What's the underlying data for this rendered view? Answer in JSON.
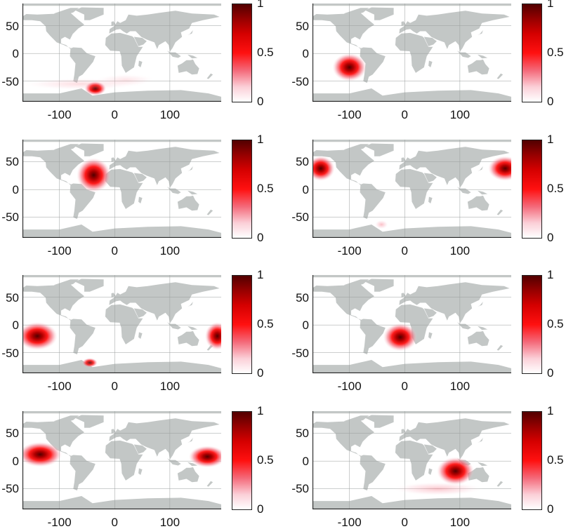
{
  "chart_data": {
    "type": "heatmap",
    "description_axes": {
      "xlim": [
        -167,
        193
      ],
      "ylim": [
        -87,
        90
      ]
    },
    "x_ticks": [
      "-100",
      "0",
      "100"
    ],
    "x_tick_values": [
      -100,
      0,
      100
    ],
    "y_ticks": [
      "50",
      "0",
      "-50"
    ],
    "y_tick_values": [
      50,
      0,
      -50
    ],
    "colorbar": {
      "ticks": [
        "1",
        "0.5",
        "0"
      ],
      "tick_values": [
        1,
        0.5,
        0
      ],
      "range": [
        0,
        1
      ]
    },
    "colors": {
      "land": "#c3c7c6",
      "low": "#ffffff",
      "mid": "#ff0000",
      "high": "#520000",
      "axis": "#222222"
    },
    "panels": [
      {
        "hotspots": [
          {
            "lon": -35,
            "lat": -63,
            "rlon": 14,
            "rlat": 9,
            "peak": 1.0
          },
          {
            "lon": -60,
            "lat": -55,
            "rlon": 80,
            "rlat": 8,
            "peak": 0.15
          },
          {
            "lon": 20,
            "lat": -48,
            "rlon": 40,
            "rlat": 8,
            "peak": 0.1
          }
        ]
      },
      {
        "hotspots": [
          {
            "lon": -100,
            "lat": -25,
            "rlon": 22,
            "rlat": 18,
            "peak": 1.0
          }
        ]
      },
      {
        "hotspots": [
          {
            "lon": -38,
            "lat": 26,
            "rlon": 22,
            "rlat": 22,
            "peak": 1.0
          }
        ]
      },
      {
        "hotspots": [
          {
            "lon": -152,
            "lat": 38,
            "rlon": 18,
            "rlat": 16,
            "peak": 1.0
          },
          {
            "lon": 182,
            "lat": 38,
            "rlon": 22,
            "rlat": 16,
            "peak": 0.95
          },
          {
            "lon": -42,
            "lat": -63,
            "rlon": 9,
            "rlat": 6,
            "peak": 0.35
          }
        ]
      },
      {
        "hotspots": [
          {
            "lon": -140,
            "lat": -20,
            "rlon": 26,
            "rlat": 18,
            "peak": 1.0
          },
          {
            "lon": 186,
            "lat": -20,
            "rlon": 16,
            "rlat": 18,
            "peak": 0.9
          },
          {
            "lon": -45,
            "lat": -68,
            "rlon": 10,
            "rlat": 6,
            "peak": 0.7
          }
        ]
      },
      {
        "hotspots": [
          {
            "lon": -8,
            "lat": -22,
            "rlon": 22,
            "rlat": 18,
            "peak": 1.0
          }
        ]
      },
      {
        "hotspots": [
          {
            "lon": -135,
            "lat": 12,
            "rlon": 28,
            "rlat": 16,
            "peak": 1.0
          },
          {
            "lon": 168,
            "lat": 8,
            "rlon": 24,
            "rlat": 14,
            "peak": 0.85
          }
        ]
      },
      {
        "hotspots": [
          {
            "lon": 92,
            "lat": -18,
            "rlon": 24,
            "rlat": 18,
            "peak": 1.0
          },
          {
            "lon": 60,
            "lat": -50,
            "rlon": 60,
            "rlat": 9,
            "peak": 0.3
          }
        ]
      }
    ]
  }
}
